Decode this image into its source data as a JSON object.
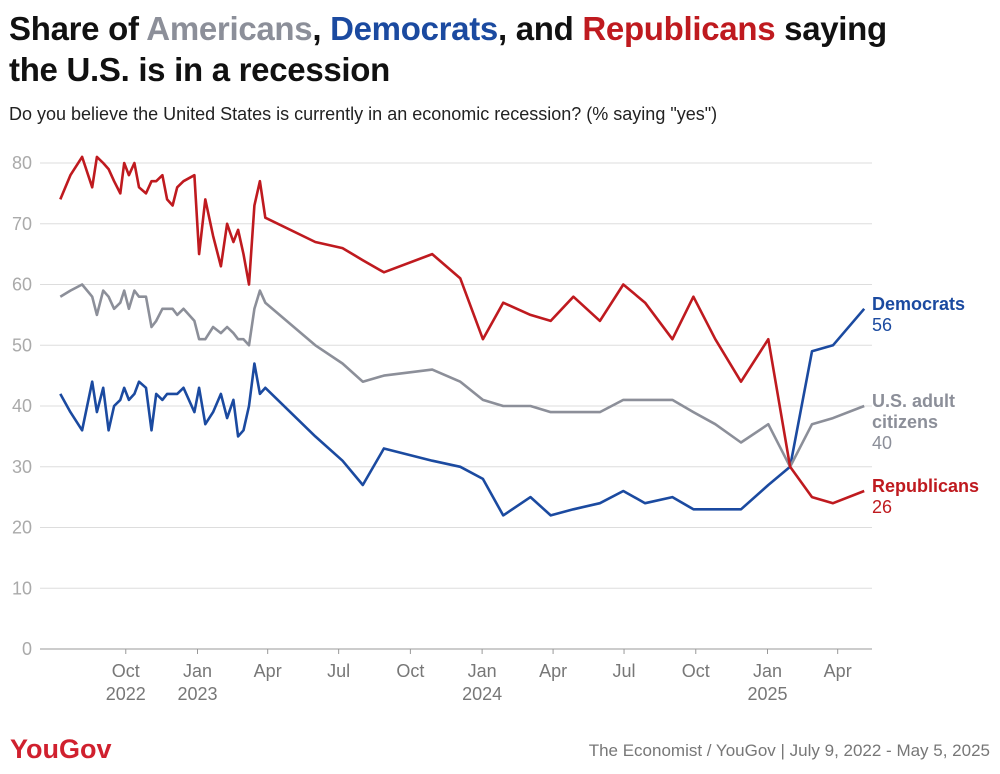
{
  "chart_data": {
    "type": "line",
    "title_parts": [
      {
        "text": "Share of "
      },
      {
        "text": "Americans",
        "color": "#8c8f99"
      },
      {
        "text": ", "
      },
      {
        "text": "Democrats",
        "color": "#1b4aa0"
      },
      {
        "text": ", and "
      },
      {
        "text": "Republicans",
        "color": "#bf1a1f"
      },
      {
        "text": " saying the U.S. is in a recession"
      }
    ],
    "subtitle": "Do you believe the United States is currently in an economic recession? (% saying \"yes\")",
    "source": "The Economist / YouGov | July 9, 2022 - May 5, 2025",
    "logo": "YouGov",
    "x": [
      "2022-07-09",
      "2022-07-22",
      "2022-08-06",
      "2022-08-19",
      "2022-08-25",
      "2022-09-02",
      "2022-09-09",
      "2022-09-16",
      "2022-09-24",
      "2022-09-29",
      "2022-10-05",
      "2022-10-12",
      "2022-10-18",
      "2022-10-27",
      "2022-11-03",
      "2022-11-09",
      "2022-11-17",
      "2022-11-23",
      "2022-11-30",
      "2022-12-06",
      "2022-12-14",
      "2022-12-28",
      "2023-01-03",
      "2023-01-11",
      "2023-01-21",
      "2023-01-31",
      "2023-02-08",
      "2023-02-16",
      "2023-02-22",
      "2023-03-01",
      "2023-03-08",
      "2023-03-15",
      "2023-03-22",
      "2023-03-29",
      "2023-06-01",
      "2023-07-06",
      "2023-08-01",
      "2023-08-28",
      "2023-10-29",
      "2023-12-04",
      "2024-01-02",
      "2024-01-28",
      "2024-03-03",
      "2024-03-29",
      "2024-04-27",
      "2024-05-31",
      "2024-06-30",
      "2024-07-28",
      "2024-09-01",
      "2024-09-28",
      "2024-10-26",
      "2024-11-28",
      "2025-01-02",
      "2025-01-30",
      "2025-02-27",
      "2025-03-26",
      "2025-05-05"
    ],
    "series": [
      {
        "name": "Democrats",
        "color": "#1b4aa0",
        "values": [
          42,
          39,
          36,
          44,
          39,
          43,
          36,
          40,
          41,
          43,
          41,
          42,
          44,
          43,
          36,
          42,
          41,
          42,
          42,
          42,
          43,
          39,
          43,
          37,
          39,
          42,
          38,
          41,
          35,
          36,
          40,
          47,
          42,
          43,
          35,
          31,
          27,
          33,
          31,
          30,
          28,
          22,
          25,
          22,
          23,
          24,
          26,
          24,
          25,
          23,
          23,
          23,
          27,
          30,
          49,
          50,
          56
        ]
      },
      {
        "name": "U.S. adult citizens",
        "color": "#8c8f99",
        "values": [
          58,
          59,
          60,
          58,
          55,
          59,
          58,
          56,
          57,
          59,
          56,
          59,
          58,
          58,
          53,
          54,
          56,
          56,
          56,
          55,
          56,
          54,
          51,
          51,
          53,
          52,
          53,
          52,
          51,
          51,
          50,
          56,
          59,
          57,
          50,
          47,
          44,
          45,
          46,
          44,
          41,
          40,
          40,
          39,
          39,
          39,
          41,
          41,
          41,
          39,
          37,
          34,
          37,
          30,
          37,
          38,
          40
        ]
      },
      {
        "name": "Republicans",
        "color": "#bf1a1f",
        "values": [
          74,
          78,
          81,
          76,
          81,
          80,
          79,
          77,
          75,
          80,
          78,
          80,
          76,
          75,
          77,
          77,
          78,
          74,
          73,
          76,
          77,
          78,
          65,
          74,
          68,
          63,
          70,
          67,
          69,
          65,
          60,
          73,
          77,
          71,
          67,
          66,
          64,
          62,
          65,
          61,
          51,
          57,
          55,
          54,
          58,
          54,
          60,
          57,
          51,
          58,
          51,
          44,
          51,
          30,
          25,
          24,
          26
        ]
      }
    ],
    "xlim": [
      "2022-06-13",
      "2025-05-15"
    ],
    "xticks": [
      {
        "value": "2022-10-01",
        "label": "Oct 2022"
      },
      {
        "value": "2023-01-01",
        "label": "Jan 2023"
      },
      {
        "value": "2023-04-01",
        "label": "Apr"
      },
      {
        "value": "2023-07-01",
        "label": "Jul"
      },
      {
        "value": "2023-10-01",
        "label": "Oct"
      },
      {
        "value": "2024-01-01",
        "label": "Jan 2024"
      },
      {
        "value": "2024-04-01",
        "label": "Apr"
      },
      {
        "value": "2024-07-01",
        "label": "Jul"
      },
      {
        "value": "2024-10-01",
        "label": "Oct"
      },
      {
        "value": "2025-01-01",
        "label": "Jan 2025"
      },
      {
        "value": "2025-04-01",
        "label": "Apr"
      }
    ],
    "ylim": [
      0,
      80
    ],
    "yticks": [
      0,
      10,
      20,
      30,
      40,
      50,
      60,
      70,
      80
    ],
    "grid": true
  }
}
